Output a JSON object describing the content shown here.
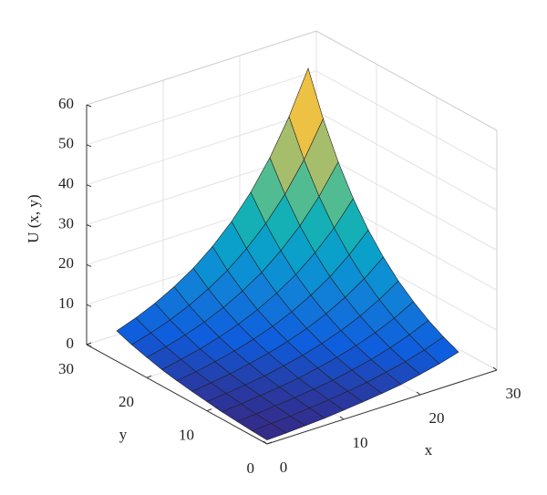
{
  "chart_data": {
    "type": "surface",
    "xlabel": "x",
    "ylabel": "y",
    "zlabel": "U (x, y)",
    "x": [
      0,
      2.5,
      5,
      7.5,
      10,
      12.5,
      15,
      17.5,
      20,
      22.5,
      25
    ],
    "y": [
      0,
      2.5,
      5,
      7.5,
      10,
      12.5,
      15,
      17.5,
      20,
      22.5,
      25
    ],
    "z": [
      [
        1.0,
        1.2,
        1.5,
        1.8,
        2.3,
        2.8,
        3.4,
        4.1,
        5.1,
        6.2,
        7.6
      ],
      [
        1.2,
        1.5,
        1.8,
        2.3,
        2.8,
        3.4,
        4.1,
        5.1,
        6.2,
        7.6,
        9.3
      ],
      [
        1.5,
        1.8,
        2.3,
        2.8,
        3.4,
        4.1,
        5.1,
        6.2,
        7.6,
        9.3,
        11.4
      ],
      [
        1.8,
        2.3,
        2.8,
        3.4,
        4.1,
        5.1,
        6.2,
        7.6,
        9.3,
        11.4,
        14.0
      ],
      [
        2.3,
        2.8,
        3.4,
        4.1,
        5.1,
        6.2,
        7.6,
        9.3,
        11.4,
        14.0,
        17.1
      ],
      [
        2.8,
        3.4,
        4.1,
        5.1,
        6.2,
        7.6,
        9.3,
        11.4,
        14.0,
        17.1,
        21.0
      ],
      [
        3.4,
        4.1,
        5.1,
        6.2,
        7.6,
        9.3,
        11.4,
        14.0,
        17.1,
        21.0,
        25.7
      ],
      [
        4.1,
        5.1,
        6.2,
        7.6,
        9.3,
        11.4,
        14.0,
        17.1,
        21.0,
        25.7,
        31.5
      ],
      [
        5.1,
        6.2,
        7.6,
        9.3,
        11.4,
        14.0,
        17.1,
        21.0,
        25.7,
        31.5,
        38.6
      ],
      [
        6.2,
        7.6,
        9.3,
        11.4,
        14.0,
        17.1,
        21.0,
        25.7,
        31.5,
        38.6,
        47.3
      ],
      [
        7.6,
        9.3,
        11.4,
        14.0,
        17.1,
        21.0,
        25.7,
        31.5,
        38.6,
        47.3,
        57.9
      ]
    ],
    "xlim": [
      0,
      30
    ],
    "ylim": [
      0,
      30
    ],
    "zlim": [
      0,
      60
    ],
    "xticks": [
      0,
      10,
      20,
      30
    ],
    "yticks": [
      0,
      10,
      20,
      30
    ],
    "zticks": [
      0,
      10,
      20,
      30,
      40,
      50,
      60
    ],
    "grid": true
  }
}
